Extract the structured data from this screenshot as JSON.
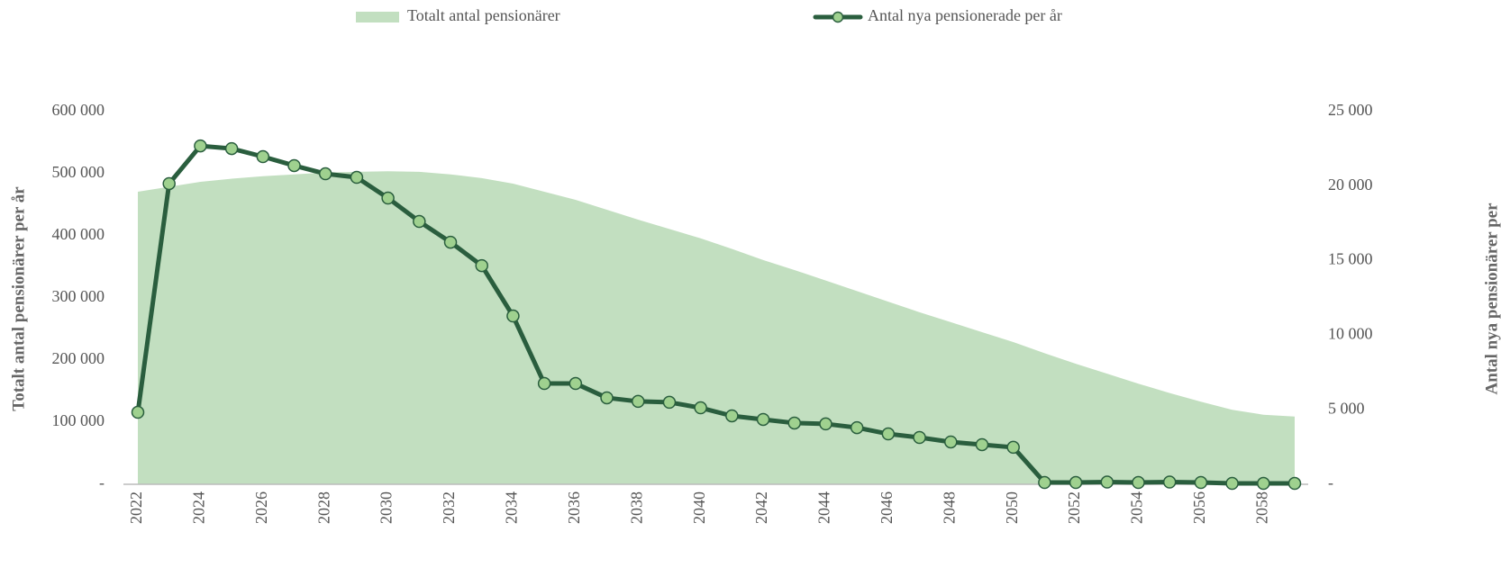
{
  "chart_data": {
    "type": "combo",
    "categories": [
      "2022",
      null,
      "2024",
      null,
      "2026",
      null,
      "2028",
      null,
      "2030",
      null,
      "2032",
      null,
      "2034",
      null,
      "2036",
      null,
      "2038",
      null,
      "2040",
      null,
      "2042",
      null,
      "2044",
      null,
      "2046",
      null,
      "2048",
      null,
      "2050",
      null,
      "2052",
      null,
      "2054",
      null,
      "2056",
      null,
      "2058",
      null
    ],
    "series": [
      {
        "name": "Totalt antal pensionärer",
        "type": "area",
        "color": "#c2dfc0",
        "axis": "y",
        "values": [
          471000,
          479000,
          487000,
          492000,
          496000,
          499000,
          502000,
          503000,
          504000,
          503000,
          499000,
          493000,
          484000,
          471000,
          458000,
          442000,
          426000,
          411000,
          396000,
          379000,
          361000,
          345000,
          328000,
          311000,
          294000,
          277000,
          261000,
          245000,
          229000,
          211000,
          194000,
          178000,
          162000,
          147000,
          133000,
          120000,
          112000,
          109000
        ]
      },
      {
        "name": "Antal nya pensionerade per år",
        "type": "line",
        "color": "#2a5e3e",
        "marker_color": "#9fd18f",
        "axis": "y2",
        "values": [
          4830,
          20170,
          22700,
          22520,
          21980,
          21380,
          20830,
          20590,
          19200,
          17630,
          16240,
          14670,
          11290,
          6760,
          6760,
          5800,
          5560,
          5500,
          5130,
          4590,
          4350,
          4110,
          4050,
          3800,
          3380,
          3140,
          2840,
          2660,
          2480,
          120,
          120,
          150,
          120,
          150,
          120,
          60,
          60,
          60
        ]
      }
    ],
    "y_label": "Totalt antal pensionärer per år",
    "y2_label": "Antal nya pensionärer per",
    "ylim": [
      0,
      600000
    ],
    "yticks": [
      {
        "value": 0,
        "label": "-"
      },
      {
        "value": 100000,
        "label": "100 000"
      },
      {
        "value": 200000,
        "label": "200 000"
      },
      {
        "value": 300000,
        "label": "300 000"
      },
      {
        "value": 400000,
        "label": "400 000"
      },
      {
        "value": 500000,
        "label": "500 000"
      },
      {
        "value": 600000,
        "label": "600 000"
      }
    ],
    "y2lim": [
      0,
      25000
    ],
    "y2ticks": [
      {
        "value": 0,
        "label": "-"
      },
      {
        "value": 5000,
        "label": "5 000"
      },
      {
        "value": 10000,
        "label": "10 000"
      },
      {
        "value": 15000,
        "label": "15 000"
      },
      {
        "value": 20000,
        "label": "20 000"
      },
      {
        "value": 25000,
        "label": "25 000"
      }
    ],
    "legend": "top"
  }
}
